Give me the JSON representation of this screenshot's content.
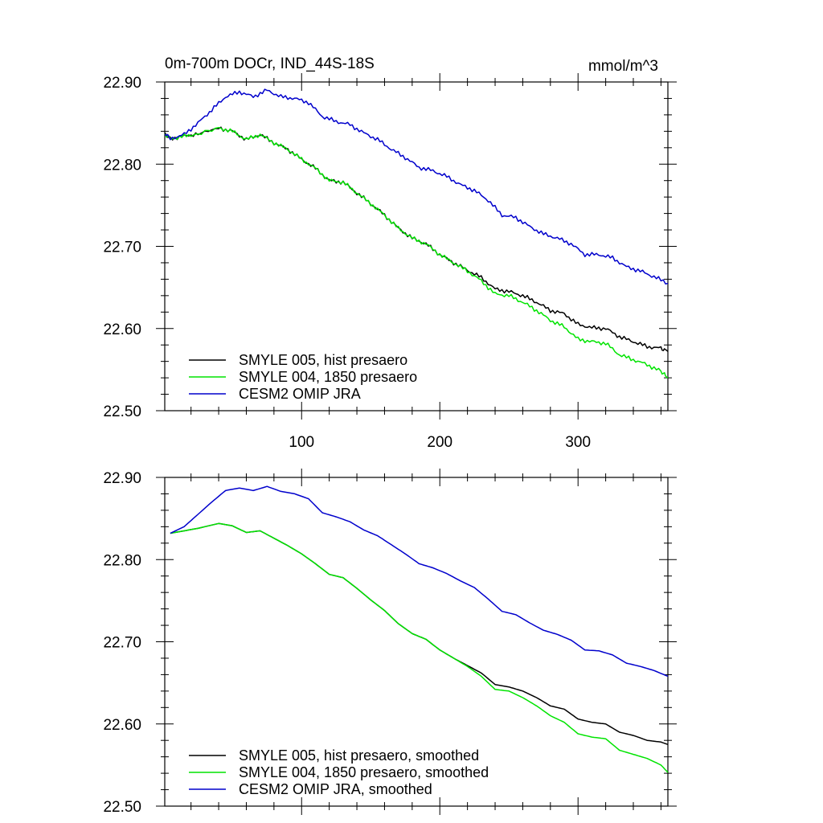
{
  "chart_data": [
    {
      "type": "line",
      "title": "0m-700m DOCr, IND_44S-18S",
      "units": "mmol/m^3",
      "xlabel": "",
      "ylabel": "",
      "xlim": [
        1,
        365
      ],
      "ylim": [
        22.5,
        22.9
      ],
      "yticks": [
        "22.50",
        "22.60",
        "22.70",
        "22.80",
        "22.90"
      ],
      "xticks": [
        "100",
        "200",
        "300"
      ],
      "show_x_tick_labels": true,
      "grid": false,
      "legend": "bottom-left",
      "series": [
        {
          "name": "SMYLE 005, hist presaero",
          "color": "#000000",
          "x": [
            1,
            5,
            15,
            25,
            40,
            50,
            60,
            70,
            80,
            90,
            100,
            110,
            120,
            130,
            140,
            150,
            160,
            170,
            180,
            190,
            200,
            210,
            220,
            230,
            240,
            250,
            260,
            270,
            280,
            290,
            300,
            310,
            320,
            330,
            340,
            350,
            360,
            365
          ],
          "y": [
            22.837,
            22.831,
            22.834,
            22.837,
            22.844,
            22.84,
            22.83,
            22.836,
            22.826,
            22.818,
            22.806,
            22.795,
            22.78,
            22.778,
            22.765,
            22.752,
            22.738,
            22.722,
            22.71,
            22.703,
            22.69,
            22.68,
            22.671,
            22.662,
            22.648,
            22.645,
            22.64,
            22.632,
            22.622,
            22.618,
            22.605,
            22.601,
            22.6,
            22.59,
            22.584,
            22.578,
            22.576,
            22.572
          ]
        },
        {
          "name": "SMYLE 004, 1850 presaero",
          "color": "#00e400",
          "x": [
            1,
            5,
            15,
            25,
            40,
            50,
            60,
            70,
            80,
            90,
            100,
            110,
            120,
            130,
            140,
            150,
            160,
            170,
            180,
            190,
            200,
            210,
            220,
            230,
            240,
            250,
            260,
            270,
            280,
            290,
            300,
            310,
            320,
            330,
            340,
            350,
            360,
            365
          ],
          "y": [
            22.837,
            22.831,
            22.834,
            22.837,
            22.844,
            22.84,
            22.83,
            22.836,
            22.826,
            22.818,
            22.806,
            22.795,
            22.78,
            22.778,
            22.765,
            22.752,
            22.738,
            22.722,
            22.71,
            22.703,
            22.69,
            22.68,
            22.67,
            22.658,
            22.642,
            22.64,
            22.632,
            22.622,
            22.61,
            22.602,
            22.587,
            22.584,
            22.582,
            22.568,
            22.562,
            22.556,
            22.548,
            22.54
          ]
        },
        {
          "name": "CESM2 OMIP JRA",
          "color": "#0000cc",
          "x": [
            1,
            5,
            15,
            25,
            35,
            45,
            55,
            65,
            75,
            85,
            95,
            105,
            115,
            125,
            135,
            145,
            155,
            165,
            175,
            185,
            195,
            205,
            215,
            225,
            235,
            245,
            255,
            265,
            275,
            285,
            295,
            305,
            315,
            325,
            335,
            345,
            355,
            365
          ],
          "y": [
            22.838,
            22.831,
            22.836,
            22.85,
            22.866,
            22.882,
            22.888,
            22.882,
            22.89,
            22.882,
            22.88,
            22.875,
            22.858,
            22.852,
            22.848,
            22.838,
            22.83,
            22.818,
            22.808,
            22.796,
            22.792,
            22.785,
            22.775,
            22.768,
            22.756,
            22.738,
            22.735,
            22.724,
            22.715,
            22.71,
            22.703,
            22.69,
            22.69,
            22.686,
            22.675,
            22.67,
            22.663,
            22.655
          ]
        }
      ]
    },
    {
      "type": "line",
      "title": "",
      "units": "",
      "xlabel": "",
      "ylabel": "",
      "xlim": [
        1,
        365
      ],
      "ylim": [
        22.5,
        22.9
      ],
      "yticks": [
        "22.50",
        "22.60",
        "22.70",
        "22.80",
        "22.90"
      ],
      "xticks": [
        "",
        "",
        ""
      ],
      "show_x_tick_labels": false,
      "grid": false,
      "legend": "bottom-left",
      "series": [
        {
          "name": "SMYLE 005, hist presaero, smoothed",
          "color": "#000000",
          "x": [
            5,
            15,
            25,
            40,
            50,
            60,
            70,
            80,
            90,
            100,
            110,
            120,
            130,
            140,
            150,
            160,
            170,
            180,
            190,
            200,
            210,
            220,
            230,
            240,
            250,
            260,
            270,
            280,
            290,
            300,
            310,
            320,
            330,
            340,
            350,
            360,
            365
          ],
          "y": [
            22.832,
            22.835,
            22.838,
            22.844,
            22.841,
            22.833,
            22.835,
            22.826,
            22.817,
            22.807,
            22.795,
            22.782,
            22.778,
            22.765,
            22.751,
            22.738,
            22.722,
            22.71,
            22.703,
            22.69,
            22.68,
            22.671,
            22.662,
            22.648,
            22.645,
            22.64,
            22.632,
            22.622,
            22.618,
            22.606,
            22.602,
            22.6,
            22.59,
            22.586,
            22.58,
            22.578,
            22.575
          ]
        },
        {
          "name": "SMYLE 004, 1850 presaero, smoothed",
          "color": "#00e400",
          "x": [
            5,
            15,
            25,
            40,
            50,
            60,
            70,
            80,
            90,
            100,
            110,
            120,
            130,
            140,
            150,
            160,
            170,
            180,
            190,
            200,
            210,
            220,
            230,
            240,
            250,
            260,
            270,
            280,
            290,
            300,
            310,
            320,
            330,
            340,
            350,
            360,
            365
          ],
          "y": [
            22.832,
            22.835,
            22.838,
            22.844,
            22.841,
            22.833,
            22.835,
            22.826,
            22.817,
            22.807,
            22.795,
            22.782,
            22.778,
            22.765,
            22.751,
            22.738,
            22.722,
            22.71,
            22.703,
            22.69,
            22.68,
            22.67,
            22.658,
            22.642,
            22.64,
            22.632,
            22.622,
            22.61,
            22.602,
            22.588,
            22.584,
            22.582,
            22.568,
            22.563,
            22.558,
            22.55,
            22.541
          ]
        },
        {
          "name": "CESM2 OMIP JRA, smoothed",
          "color": "#0000cc",
          "x": [
            5,
            15,
            25,
            35,
            45,
            55,
            65,
            75,
            85,
            95,
            105,
            115,
            125,
            135,
            145,
            155,
            165,
            175,
            185,
            195,
            205,
            215,
            225,
            235,
            245,
            255,
            265,
            275,
            285,
            295,
            305,
            315,
            325,
            335,
            345,
            355,
            365
          ],
          "y": [
            22.832,
            22.84,
            22.855,
            22.87,
            22.884,
            22.887,
            22.884,
            22.889,
            22.883,
            22.88,
            22.874,
            22.857,
            22.852,
            22.846,
            22.836,
            22.829,
            22.818,
            22.807,
            22.795,
            22.79,
            22.783,
            22.774,
            22.766,
            22.752,
            22.737,
            22.733,
            22.723,
            22.714,
            22.709,
            22.702,
            22.69,
            22.689,
            22.684,
            22.674,
            22.67,
            22.665,
            22.658
          ]
        }
      ]
    }
  ]
}
